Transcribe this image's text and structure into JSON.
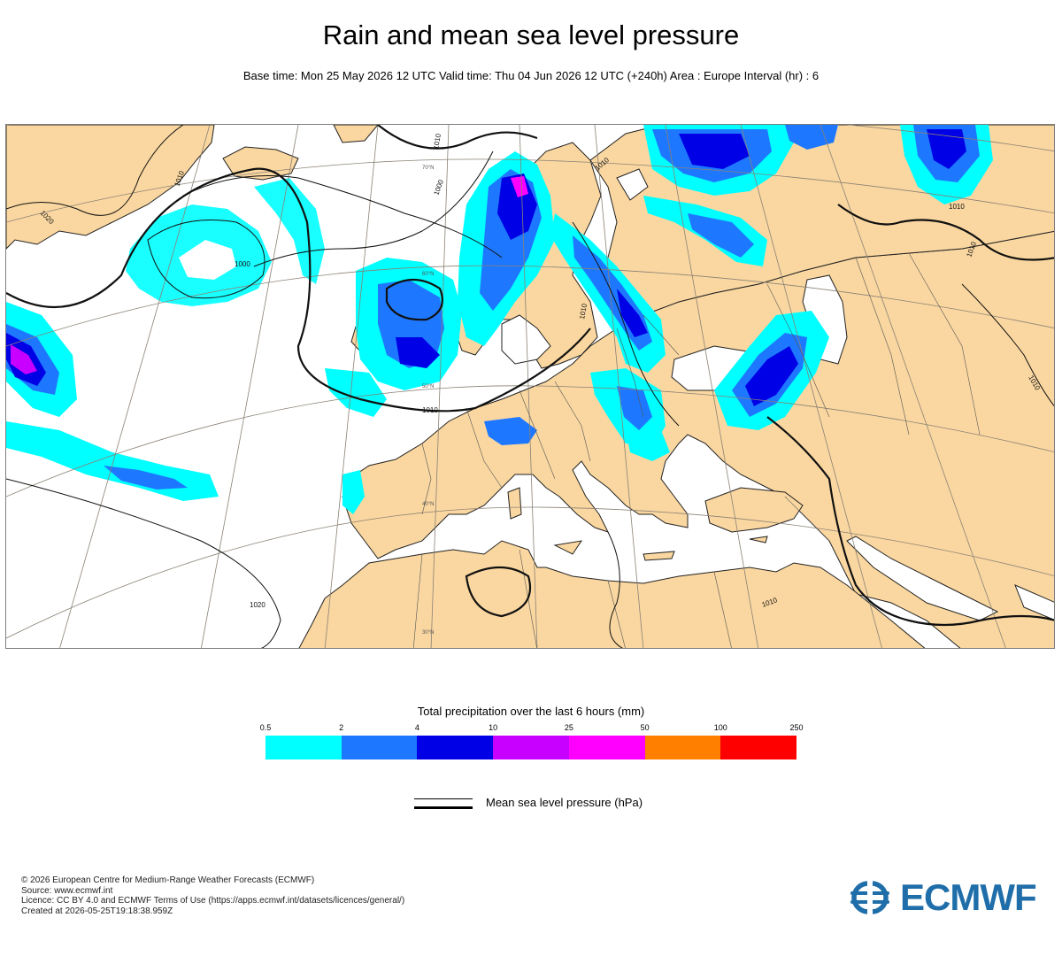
{
  "title": "Rain and mean sea level pressure",
  "subtitle": "Base time: Mon 25 May 2026 12 UTC Valid time: Thu 04 Jun 2026 12 UTC (+240h) Area : Europe Interval (hr) : 6",
  "map": {
    "region": "Europe",
    "land_color": "#fad7a0",
    "sea_color": "#ffffff",
    "isobar_labels": [
      "1010",
      "1010",
      "1000",
      "1010",
      "1020",
      "1000",
      "1010",
      "1010",
      "1010",
      "1020",
      "1010",
      "1010",
      "1010"
    ],
    "latitude_labels": [
      "70°N",
      "60°N",
      "50°N",
      "40°N",
      "30°N"
    ]
  },
  "legend": {
    "title": "Total precipitation over the last 6 hours (mm)",
    "ticks": [
      "0.5",
      "2",
      "4",
      "10",
      "25",
      "50",
      "100",
      "250"
    ],
    "colors": [
      "#00ffff",
      "#1e78ff",
      "#0000e6",
      "#c800ff",
      "#ff00ff",
      "#ff7f00",
      "#ff0000"
    ]
  },
  "msl_legend": {
    "label": "Mean sea level pressure (hPa)"
  },
  "footer": {
    "lines": [
      "© 2026 European Centre for Medium-Range Weather Forecasts (ECMWF)",
      "Source: www.ecmwf.int",
      "Licence: CC BY 4.0 and ECMWF Terms of Use (https://apps.ecmwf.int/datasets/licences/general/)",
      "Created at 2026-05-25T19:18:38.959Z"
    ]
  },
  "logo": {
    "text": "ECMWF",
    "color": "#1f6ea9",
    "icon": "ecmwf-logo-icon"
  }
}
